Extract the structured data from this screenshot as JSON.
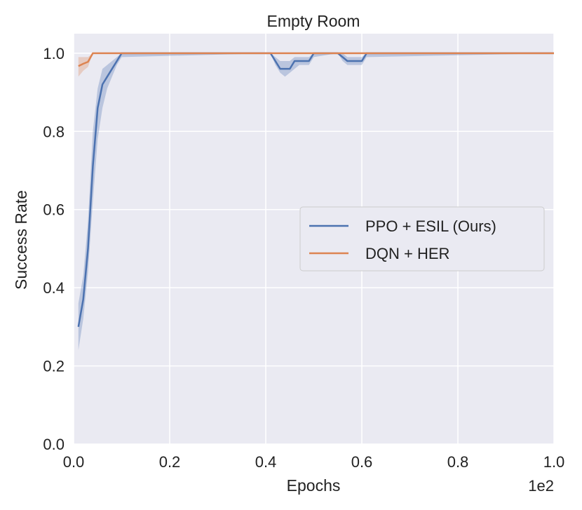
{
  "chart_data": {
    "type": "line",
    "title": "Empty Room",
    "xlabel": "Epochs",
    "ylabel": "Success Rate",
    "x_offset_label": "1e2",
    "xlim": [
      0,
      1.0
    ],
    "ylim": [
      0,
      1.05
    ],
    "xticks": [
      0.0,
      0.2,
      0.4,
      0.6,
      0.8,
      1.0
    ],
    "xtick_labels": [
      "0.0",
      "0.2",
      "0.4",
      "0.6",
      "0.8",
      "1.0"
    ],
    "yticks": [
      0.0,
      0.2,
      0.4,
      0.6,
      0.8,
      1.0
    ],
    "ytick_labels": [
      "0.0",
      "0.2",
      "0.4",
      "0.6",
      "0.8",
      "1.0"
    ],
    "grid": true,
    "legend_position": "center-right",
    "series": [
      {
        "name": "PPO + ESIL (Ours)",
        "color": "#4c72b0",
        "x": [
          0.01,
          0.02,
          0.03,
          0.04,
          0.05,
          0.06,
          0.07,
          0.08,
          0.09,
          0.1,
          0.41,
          0.42,
          0.43,
          0.44,
          0.45,
          0.46,
          0.47,
          0.48,
          0.49,
          0.5,
          0.55,
          0.56,
          0.57,
          0.58,
          0.59,
          0.6,
          0.61,
          1.0
        ],
        "y": [
          0.3,
          0.37,
          0.5,
          0.71,
          0.86,
          0.92,
          0.94,
          0.96,
          0.98,
          1.0,
          1.0,
          0.98,
          0.96,
          0.96,
          0.96,
          0.98,
          0.98,
          0.98,
          0.98,
          1.0,
          1.0,
          0.99,
          0.98,
          0.98,
          0.98,
          0.98,
          1.0,
          1.0
        ],
        "lower": [
          0.24,
          0.32,
          0.44,
          0.62,
          0.78,
          0.86,
          0.91,
          0.94,
          0.97,
          0.99,
          1.0,
          0.97,
          0.95,
          0.94,
          0.95,
          0.96,
          0.97,
          0.97,
          0.97,
          0.99,
          1.0,
          0.98,
          0.97,
          0.97,
          0.97,
          0.97,
          0.99,
          1.0
        ],
        "upper": [
          0.36,
          0.43,
          0.57,
          0.8,
          0.91,
          0.96,
          0.97,
          0.98,
          0.99,
          1.0,
          1.0,
          0.99,
          0.98,
          0.98,
          0.98,
          0.99,
          0.99,
          0.99,
          0.99,
          1.0,
          1.0,
          1.0,
          0.99,
          0.99,
          0.99,
          0.99,
          1.0,
          1.0
        ]
      },
      {
        "name": "DQN + HER",
        "color": "#dd8452",
        "x": [
          0.01,
          0.02,
          0.03,
          0.04,
          0.05,
          1.0
        ],
        "y": [
          0.967,
          0.973,
          0.978,
          1.0,
          1.0,
          1.0
        ],
        "lower": [
          0.94,
          0.955,
          0.965,
          1.0,
          1.0,
          1.0
        ],
        "upper": [
          0.99,
          0.99,
          0.99,
          1.0,
          1.0,
          1.0
        ]
      }
    ]
  }
}
